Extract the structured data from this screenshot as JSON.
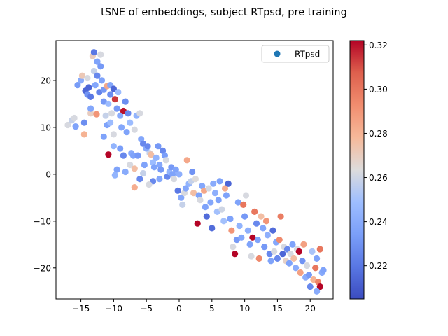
{
  "chart_data": {
    "type": "scatter",
    "title": "tSNE of embeddings, subject RTpsd, pre training",
    "xlabel": "",
    "ylabel": "",
    "xlim": [
      -18.8,
      23.5
    ],
    "ylim": [
      -26.6,
      28.5
    ],
    "x_ticks": [
      -15,
      -10,
      -5,
      0,
      5,
      10,
      15,
      20
    ],
    "y_ticks": [
      -20,
      -10,
      0,
      10,
      20
    ],
    "legend": {
      "position": "top-right",
      "entries": [
        "RTpsd"
      ],
      "marker_color": "#1f77b4"
    },
    "colorbar": {
      "colormap": "coolwarm",
      "range": [
        0.205,
        0.322
      ],
      "ticks": [
        0.22,
        0.24,
        0.26,
        0.28,
        0.3,
        0.32
      ],
      "tick_labels": [
        "0.22",
        "0.24",
        "0.26",
        "0.28",
        "0.30",
        "0.32"
      ]
    },
    "grid": false,
    "series": [
      {
        "name": "RTpsd",
        "points": [
          [
            -17.0,
            10.5,
            0.262
          ],
          [
            -16.4,
            11.5,
            0.258
          ],
          [
            -16.0,
            12.0,
            0.262
          ],
          [
            -15.8,
            10.2,
            0.236
          ],
          [
            -15.5,
            19.0,
            0.233
          ],
          [
            -15.0,
            20.0,
            0.24
          ],
          [
            -14.8,
            21.0,
            0.272
          ],
          [
            -14.5,
            8.5,
            0.28
          ],
          [
            -14.3,
            17.8,
            0.214
          ],
          [
            -14.0,
            17.0,
            0.23
          ],
          [
            -14.0,
            20.5,
            0.262
          ],
          [
            -13.8,
            18.5,
            0.214
          ],
          [
            -13.5,
            16.5,
            0.22
          ],
          [
            -13.5,
            13.0,
            0.27
          ],
          [
            -13.2,
            25.2,
            0.27
          ],
          [
            -13.0,
            26.0,
            0.22
          ],
          [
            -13.0,
            22.0,
            0.258
          ],
          [
            -12.8,
            19.0,
            0.238
          ],
          [
            -12.5,
            24.0,
            0.236
          ],
          [
            -12.5,
            21.0,
            0.226
          ],
          [
            -12.2,
            17.5,
            0.224
          ],
          [
            -12.0,
            25.5,
            0.262
          ],
          [
            -12.0,
            23.0,
            0.232
          ],
          [
            -11.8,
            20.0,
            0.236
          ],
          [
            -11.5,
            18.0,
            0.232
          ],
          [
            -11.5,
            15.5,
            0.232
          ],
          [
            -11.2,
            12.5,
            0.258
          ],
          [
            -11.0,
            18.8,
            0.284
          ],
          [
            -11.0,
            10.5,
            0.236
          ],
          [
            -10.8,
            15.0,
            0.248
          ],
          [
            -10.5,
            19.0,
            0.238
          ],
          [
            -10.5,
            17.0,
            0.228
          ],
          [
            -10.3,
            13.0,
            0.262
          ],
          [
            -10.0,
            18.2,
            0.214
          ],
          [
            -10.0,
            8.5,
            0.262
          ],
          [
            -9.8,
            16.0,
            0.314
          ],
          [
            -9.5,
            14.0,
            0.232
          ],
          [
            -9.3,
            17.5,
            0.248
          ],
          [
            -9.0,
            12.5,
            0.24
          ],
          [
            -8.8,
            10.0,
            0.238
          ],
          [
            -8.5,
            13.5,
            0.32
          ],
          [
            -8.2,
            15.5,
            0.228
          ],
          [
            -8.0,
            9.0,
            0.236
          ],
          [
            -7.8,
            13.0,
            0.226
          ],
          [
            -7.5,
            11.0,
            0.248
          ],
          [
            -7.3,
            4.5,
            0.24
          ],
          [
            -7.0,
            4.0,
            0.236
          ],
          [
            -6.8,
            9.5,
            0.262
          ],
          [
            -6.5,
            12.5,
            0.244
          ],
          [
            -6.3,
            4.0,
            0.232
          ],
          [
            -6.0,
            13.0,
            0.262
          ],
          [
            -5.8,
            7.5,
            0.238
          ],
          [
            -5.5,
            6.5,
            0.226
          ],
          [
            -5.3,
            2.0,
            0.236
          ],
          [
            -5.0,
            5.5,
            0.24
          ],
          [
            -4.8,
            6.0,
            0.226
          ],
          [
            -4.5,
            4.5,
            0.258
          ],
          [
            -4.3,
            4.2,
            0.276
          ],
          [
            -4.0,
            2.5,
            0.248
          ],
          [
            -3.8,
            1.5,
            0.236
          ],
          [
            -3.5,
            3.5,
            0.244
          ],
          [
            -3.2,
            6.0,
            0.232
          ],
          [
            -3.0,
            2.0,
            0.238
          ],
          [
            -2.8,
            1.0,
            0.232
          ],
          [
            -2.5,
            5.0,
            0.226
          ],
          [
            -2.2,
            4.0,
            0.234
          ],
          [
            -2.0,
            3.0,
            0.262
          ],
          [
            -1.8,
            -0.5,
            0.226
          ],
          [
            -1.5,
            0.5,
            0.244
          ],
          [
            -1.2,
            1.5,
            0.232
          ],
          [
            -1.0,
            0.0,
            0.236
          ],
          [
            -0.8,
            -1.0,
            0.262
          ],
          [
            -0.5,
            1.0,
            0.236
          ],
          [
            -0.2,
            -3.5,
            0.22
          ],
          [
            0.0,
            0.0,
            0.242
          ],
          [
            0.3,
            -5.0,
            0.238
          ],
          [
            0.5,
            -6.5,
            0.258
          ],
          [
            0.8,
            -4.0,
            0.262
          ],
          [
            1.0,
            -3.0,
            0.238
          ],
          [
            1.2,
            3.0,
            0.284
          ],
          [
            1.5,
            -2.0,
            0.244
          ],
          [
            1.8,
            -1.5,
            0.258
          ],
          [
            2.0,
            0.5,
            0.23
          ],
          [
            2.2,
            -4.0,
            0.276
          ],
          [
            2.5,
            -1.0,
            0.264
          ],
          [
            2.8,
            -10.5,
            0.322
          ],
          [
            3.0,
            -4.5,
            0.236
          ],
          [
            3.2,
            -5.5,
            0.262
          ],
          [
            3.5,
            -2.5,
            0.238
          ],
          [
            3.8,
            -3.5,
            0.284
          ],
          [
            4.0,
            -7.0,
            0.236
          ],
          [
            4.2,
            -9.0,
            0.216
          ],
          [
            4.5,
            -3.0,
            0.262
          ],
          [
            4.8,
            -6.0,
            0.238
          ],
          [
            5.0,
            -11.5,
            0.216
          ],
          [
            5.2,
            -2.0,
            0.24
          ],
          [
            5.5,
            -4.0,
            0.242
          ],
          [
            5.8,
            -8.0,
            0.25
          ],
          [
            6.0,
            -5.5,
            0.236
          ],
          [
            6.2,
            -1.5,
            0.236
          ],
          [
            6.5,
            -7.5,
            0.26
          ],
          [
            6.8,
            -10.0,
            0.25
          ],
          [
            7.0,
            -3.0,
            0.282
          ],
          [
            7.2,
            -4.5,
            0.236
          ],
          [
            7.5,
            -2.0,
            0.214
          ],
          [
            7.8,
            -9.5,
            0.236
          ],
          [
            8.0,
            -12.0,
            0.29
          ],
          [
            8.2,
            -15.5,
            0.262
          ],
          [
            8.5,
            -17.0,
            0.322
          ],
          [
            8.8,
            -14.0,
            0.232
          ],
          [
            9.0,
            -6.0,
            0.236
          ],
          [
            9.2,
            -11.0,
            0.244
          ],
          [
            9.5,
            -13.5,
            0.238
          ],
          [
            9.8,
            -6.5,
            0.3
          ],
          [
            10.0,
            -9.0,
            0.232
          ],
          [
            10.2,
            -4.5,
            0.262
          ],
          [
            10.5,
            -12.0,
            0.242
          ],
          [
            10.8,
            -15.0,
            0.236
          ],
          [
            11.0,
            -17.5,
            0.262
          ],
          [
            11.2,
            -13.5,
            0.322
          ],
          [
            11.5,
            -8.0,
            0.3
          ],
          [
            11.8,
            -10.5,
            0.226
          ],
          [
            12.0,
            -14.0,
            0.236
          ],
          [
            12.2,
            -18.0,
            0.294
          ],
          [
            12.5,
            -9.0,
            0.276
          ],
          [
            12.8,
            -11.5,
            0.238
          ],
          [
            13.0,
            -15.5,
            0.232
          ],
          [
            13.3,
            -10.0,
            0.29
          ],
          [
            13.5,
            -13.0,
            0.242
          ],
          [
            13.8,
            -17.0,
            0.226
          ],
          [
            14.0,
            -18.5,
            0.236
          ],
          [
            14.3,
            -12.0,
            0.216
          ],
          [
            14.5,
            -16.5,
            0.262
          ],
          [
            14.8,
            -14.5,
            0.238
          ],
          [
            15.0,
            -18.0,
            0.226
          ],
          [
            15.3,
            -14.0,
            0.294
          ],
          [
            15.5,
            -9.0,
            0.298
          ],
          [
            15.8,
            -17.0,
            0.214
          ],
          [
            16.0,
            -15.5,
            0.262
          ],
          [
            16.3,
            -18.5,
            0.268
          ],
          [
            16.5,
            -16.0,
            0.226
          ],
          [
            16.8,
            -19.0,
            0.236
          ],
          [
            17.0,
            -17.0,
            0.262
          ],
          [
            17.3,
            -15.0,
            0.236
          ],
          [
            17.5,
            -18.0,
            0.276
          ],
          [
            17.8,
            -20.0,
            0.24
          ],
          [
            18.0,
            -16.0,
            0.262
          ],
          [
            18.3,
            -16.5,
            0.322
          ],
          [
            18.5,
            -21.0,
            0.286
          ],
          [
            18.8,
            -18.5,
            0.23
          ],
          [
            19.0,
            -15.0,
            0.286
          ],
          [
            19.3,
            -22.0,
            0.24
          ],
          [
            19.5,
            -19.5,
            0.262
          ],
          [
            19.8,
            -21.5,
            0.232
          ],
          [
            20.0,
            -24.0,
            0.226
          ],
          [
            20.3,
            -16.5,
            0.252
          ],
          [
            20.5,
            -22.5,
            0.28
          ],
          [
            20.8,
            -20.0,
            0.3
          ],
          [
            21.0,
            -18.0,
            0.236
          ],
          [
            21.2,
            -23.0,
            0.296
          ],
          [
            21.5,
            -16.0,
            0.3
          ],
          [
            21.5,
            -24.0,
            0.322
          ],
          [
            21.8,
            -21.0,
            0.24
          ],
          [
            22.0,
            -20.5,
            0.236
          ],
          [
            21.0,
            -25.0,
            0.24
          ],
          [
            -12.6,
            12.8,
            0.29
          ],
          [
            -13.5,
            14.0,
            0.238
          ],
          [
            -11.5,
            8.0,
            0.236
          ],
          [
            -14.5,
            11.0,
            0.228
          ],
          [
            -10.5,
            11.0,
            0.248
          ],
          [
            -9.0,
            5.5,
            0.234
          ],
          [
            -8.5,
            4.0,
            0.226
          ],
          [
            -10.0,
            6.0,
            0.244
          ],
          [
            -9.5,
            1.0,
            0.236
          ],
          [
            -10.8,
            4.2,
            0.322
          ],
          [
            -7.5,
            2.0,
            0.262
          ],
          [
            -6.8,
            1.2,
            0.276
          ],
          [
            -5.5,
            0.2,
            0.258
          ],
          [
            -4.0,
            -1.5,
            0.226
          ],
          [
            -3.0,
            -1.0,
            0.238
          ],
          [
            -8.2,
            0.5,
            0.24
          ],
          [
            -6.0,
            -1.0,
            0.226
          ],
          [
            -4.6,
            -2.2,
            0.262
          ],
          [
            -6.8,
            -2.8,
            0.282
          ],
          [
            -9.8,
            -0.2,
            0.244
          ]
        ]
      }
    ]
  }
}
